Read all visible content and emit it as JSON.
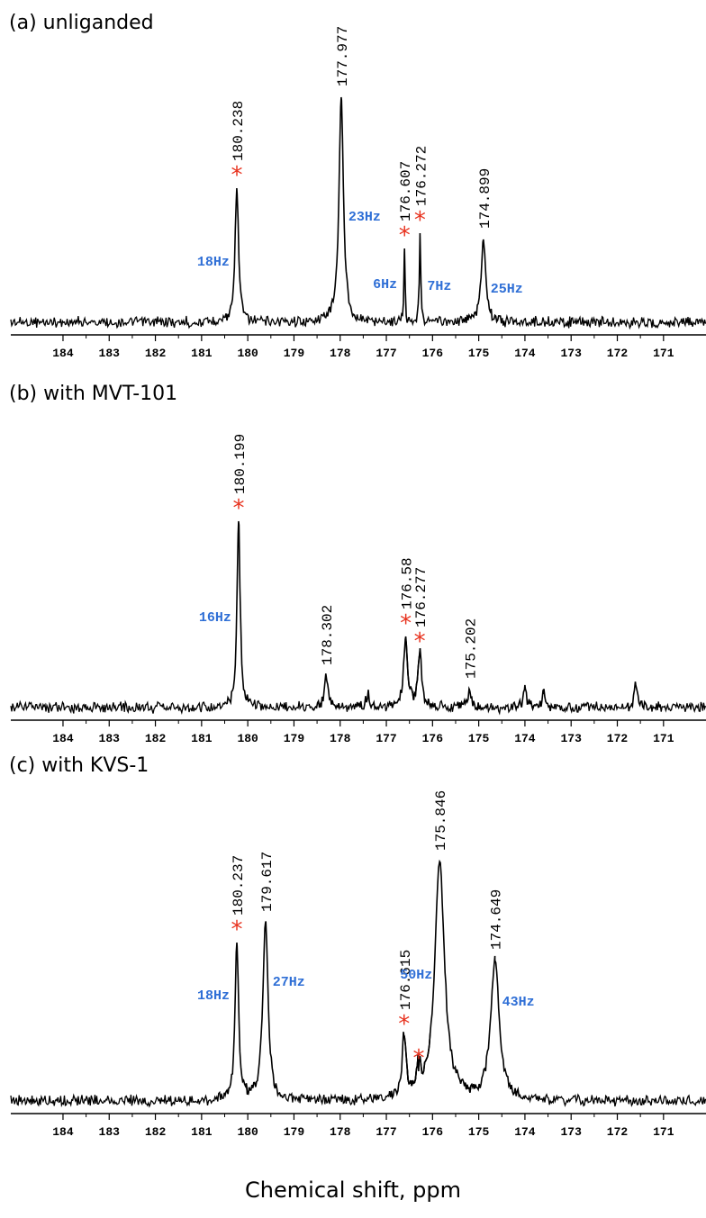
{
  "chart_data": [
    {
      "type": "spectrum",
      "title": "(a) unliganded",
      "mark_symbol": "*",
      "xlim": [
        185.13,
        170.08
      ],
      "xticks": [
        184,
        183,
        182,
        181,
        180,
        179,
        178,
        177,
        176,
        175,
        174,
        173,
        172,
        171
      ],
      "ylim": [
        0,
        300
      ],
      "color": "#000000",
      "mark_color": "#e8331f",
      "label_color": "#2f6fd6",
      "peaks": {
        "x": [
          180.238,
          177.977,
          176.607,
          176.272,
          174.899
        ],
        "values": [
          149,
          250,
          82,
          99,
          92
        ],
        "linewidths": [
          18,
          23,
          6,
          7,
          25
        ],
        "linewidth_labels": [
          "18Hz",
          "23Hz",
          "6Hz",
          "7Hz",
          "25Hz"
        ],
        "marked": [
          true,
          false,
          true,
          true,
          false
        ]
      },
      "minor_peaks": {
        "x": [],
        "values": [],
        "marked": []
      }
    },
    {
      "type": "spectrum",
      "title": "(b) with MVT-101",
      "mark_symbol": "*",
      "xlim": [
        185.13,
        170.08
      ],
      "xticks": [
        184,
        183,
        182,
        181,
        180,
        179,
        178,
        177,
        176,
        175,
        174,
        173,
        172,
        171
      ],
      "ylim": [
        0,
        300
      ],
      "color": "#000000",
      "mark_color": "#e8331f",
      "label_color": "#2f6fd6",
      "peaks": {
        "x": [
          180.199,
          178.302,
          176.58,
          176.277,
          175.202
        ],
        "values": [
          207,
          35,
          79,
          59,
          20
        ],
        "linewidths": [
          16,
          null,
          null,
          null,
          null
        ],
        "linewidth_labels": [
          "16Hz",
          null,
          null,
          null,
          null
        ],
        "marked": [
          true,
          false,
          true,
          true,
          false
        ]
      },
      "minor_peaks": {
        "x": [
          177.4,
          174.0,
          173.6,
          171.6
        ],
        "values": [
          15,
          25,
          17,
          25
        ],
        "marked": [
          false,
          false,
          false,
          false
        ]
      }
    },
    {
      "type": "spectrum",
      "title": "(c) with KVS-1",
      "mark_symbol": "*",
      "xlim": [
        185.13,
        170.08
      ],
      "xticks": [
        184,
        183,
        182,
        181,
        180,
        179,
        178,
        177,
        176,
        175,
        174,
        173,
        172,
        171
      ],
      "ylim": [
        0,
        300
      ],
      "color": "#000000",
      "mark_color": "#e8331f",
      "label_color": "#2f6fd6",
      "peaks": {
        "x": [
          180.237,
          179.617,
          176.615,
          175.846,
          174.649
        ],
        "values": [
          176,
          198,
          71,
          266,
          156
        ],
        "linewidths": [
          18,
          27,
          null,
          50,
          43
        ],
        "linewidth_labels": [
          "18Hz",
          "27Hz",
          null,
          "50Hz",
          "43Hz"
        ],
        "marked": [
          true,
          false,
          true,
          false,
          false
        ]
      },
      "minor_peaks": {
        "x": [
          176.3
        ],
        "values": [
          33
        ],
        "marked": [
          true
        ]
      }
    }
  ],
  "xlabel": "Chemical shift, ppm"
}
